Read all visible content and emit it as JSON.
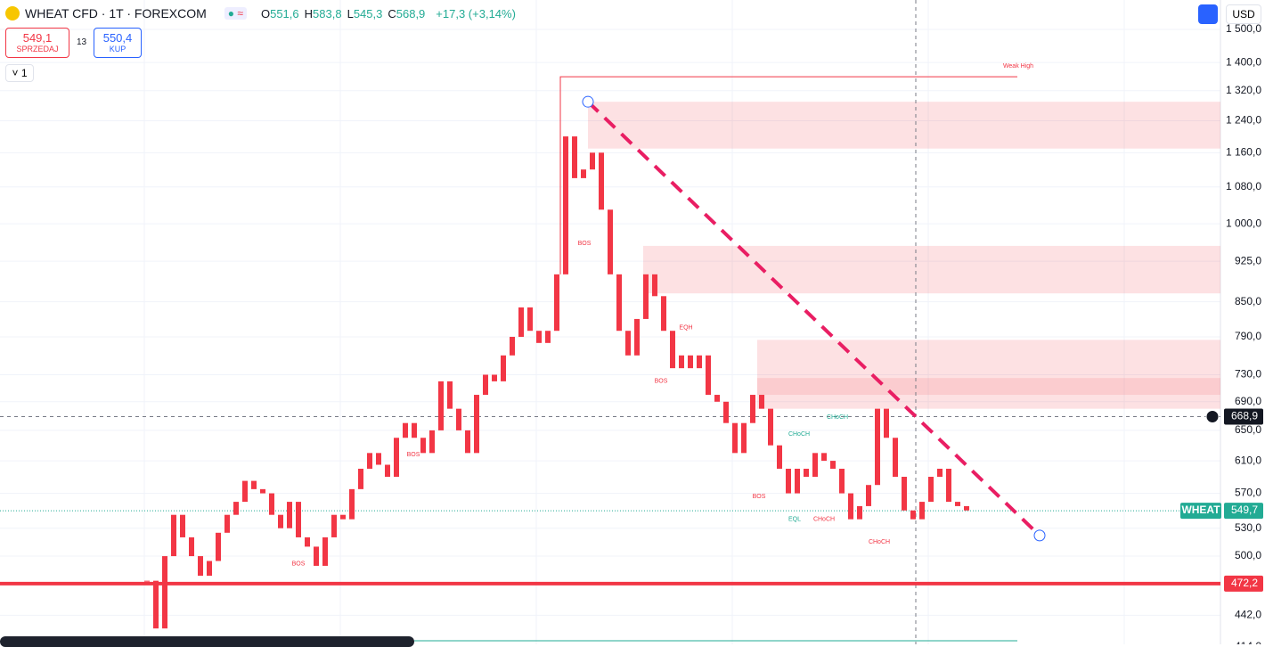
{
  "header": {
    "symbol": "WHEAT CFD · 1T · FOREXCOM",
    "ohlc": [
      {
        "label": "O",
        "value": "551,6"
      },
      {
        "label": "H",
        "value": "583,8"
      },
      {
        "label": "L",
        "value": "545,3"
      },
      {
        "label": "C",
        "value": "568,9"
      }
    ],
    "change": "+17,3 (+3,14%)",
    "sell": {
      "price": "549,1",
      "label": "SPRZEDAJ"
    },
    "spread": "13",
    "buy": {
      "price": "550,4",
      "label": "KUP"
    },
    "indicators": "1",
    "currency": "USD"
  },
  "chart_data": {
    "type": "candlestick",
    "log_scale": true,
    "color": "#f23645",
    "ylim": [
      416,
      1595
    ],
    "yticks": [
      {
        "value": 1500,
        "label": "1 500,0"
      },
      {
        "value": 1400,
        "label": "1 400,0"
      },
      {
        "value": 1320,
        "label": "1 320,0"
      },
      {
        "value": 1240,
        "label": "1 240,0"
      },
      {
        "value": 1160,
        "label": "1 160,0"
      },
      {
        "value": 1080,
        "label": "1 080,0"
      },
      {
        "value": 1000,
        "label": "1 000,0"
      },
      {
        "value": 925,
        "label": "925,0"
      },
      {
        "value": 850,
        "label": "850,0"
      },
      {
        "value": 790,
        "label": "790,0"
      },
      {
        "value": 730,
        "label": "730,0"
      },
      {
        "value": 690,
        "label": "690,0"
      },
      {
        "value": 650,
        "label": "650,0"
      },
      {
        "value": 610,
        "label": "610,0"
      },
      {
        "value": 570,
        "label": "570,0"
      },
      {
        "value": 530,
        "label": "530,0"
      },
      {
        "value": 500,
        "label": "500,0"
      },
      {
        "value": 442,
        "label": "442,0"
      },
      {
        "value": 414,
        "label": "414,0"
      }
    ],
    "closes": [
      475,
      430,
      500,
      545,
      520,
      500,
      480,
      495,
      525,
      545,
      560,
      585,
      575,
      570,
      545,
      530,
      560,
      520,
      510,
      490,
      520,
      545,
      540,
      575,
      600,
      620,
      605,
      590,
      640,
      660,
      640,
      620,
      650,
      720,
      680,
      650,
      620,
      700,
      730,
      720,
      760,
      790,
      840,
      800,
      780,
      800,
      900,
      1200,
      1100,
      1120,
      1160,
      1030,
      900,
      800,
      760,
      820,
      900,
      860,
      800,
      740,
      760,
      740,
      760,
      700,
      690,
      660,
      620,
      660,
      700,
      680,
      630,
      600,
      570,
      600,
      590,
      620,
      610,
      600,
      570,
      540,
      555,
      580,
      680,
      640,
      590,
      550,
      540,
      560,
      590,
      600,
      560,
      555,
      550
    ],
    "zones": [
      {
        "low": 1170,
        "high": 1290
      },
      {
        "low": 865,
        "high": 955
      },
      {
        "low": 680,
        "high": 785
      },
      {
        "low": 700,
        "high": 725
      }
    ],
    "weak_high": {
      "label": "Weak High",
      "value": 1359
    },
    "trendline": [
      1290,
      522
    ],
    "support": {
      "value": 472.2,
      "label": "472,2"
    },
    "last_price": {
      "name": "WHEAT",
      "value": 549.7,
      "label": "549,7"
    },
    "crosshair": {
      "value": 668.9,
      "label": "668,9"
    },
    "annotations": [
      {
        "text": "BOS",
        "value": 960
      },
      {
        "text": "EQH",
        "value": 805
      },
      {
        "text": "BOS",
        "value": 720
      },
      {
        "text": "BOS",
        "value": 618
      },
      {
        "text": "BOS",
        "value": 492
      },
      {
        "text": "BOS",
        "value": 566
      },
      {
        "text": "CHoCH",
        "value": 668
      },
      {
        "text": "CHoCH",
        "value": 645
      },
      {
        "text": "EQL",
        "value": 540
      },
      {
        "text": "CHoCH",
        "value": 540
      },
      {
        "text": "CHoCH",
        "value": 515
      }
    ]
  }
}
